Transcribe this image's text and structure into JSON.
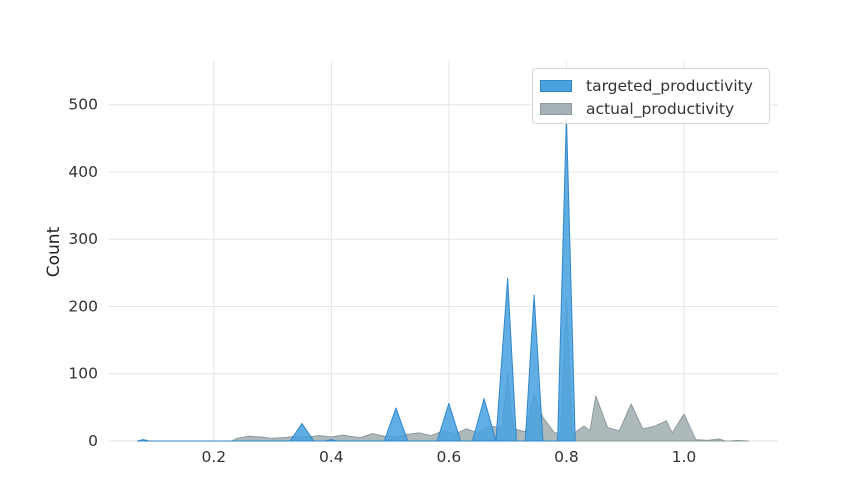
{
  "chart_data": {
    "type": "area",
    "title": "",
    "xlabel": "",
    "ylabel": "Count",
    "xlim": [
      0.02,
      1.16
    ],
    "ylim": [
      0,
      565
    ],
    "xticks": [
      0.2,
      0.4,
      0.6,
      0.8,
      1.0
    ],
    "xtick_labels": [
      "0.2",
      "0.4",
      "0.6",
      "0.8",
      "1.0"
    ],
    "yticks": [
      0,
      100,
      200,
      300,
      400,
      500
    ],
    "ytick_labels": [
      "0",
      "100",
      "200",
      "300",
      "400",
      "500"
    ],
    "grid": true,
    "legend_position": "top-right",
    "series": [
      {
        "name": "targeted_productivity",
        "color": "#4aa3df",
        "edge": "#2f86c9",
        "points": [
          [
            0.07,
            0
          ],
          [
            0.08,
            2
          ],
          [
            0.09,
            0
          ],
          [
            0.33,
            0
          ],
          [
            0.35,
            26
          ],
          [
            0.37,
            0
          ],
          [
            0.39,
            0
          ],
          [
            0.4,
            2
          ],
          [
            0.41,
            0
          ],
          [
            0.49,
            0
          ],
          [
            0.51,
            49
          ],
          [
            0.53,
            0
          ],
          [
            0.58,
            0
          ],
          [
            0.6,
            56
          ],
          [
            0.62,
            0
          ],
          [
            0.64,
            0
          ],
          [
            0.66,
            63
          ],
          [
            0.68,
            0
          ],
          [
            0.68,
            0
          ],
          [
            0.7,
            242
          ],
          [
            0.715,
            0
          ],
          [
            0.73,
            0
          ],
          [
            0.745,
            217
          ],
          [
            0.76,
            0
          ],
          [
            0.785,
            0
          ],
          [
            0.8,
            483
          ],
          [
            0.815,
            0
          ]
        ]
      },
      {
        "name": "actual_productivity",
        "color": "#a5b1b4",
        "edge": "#8c9a9e",
        "points": [
          [
            0.23,
            0
          ],
          [
            0.24,
            4
          ],
          [
            0.26,
            7
          ],
          [
            0.28,
            6
          ],
          [
            0.3,
            4
          ],
          [
            0.32,
            5
          ],
          [
            0.34,
            7
          ],
          [
            0.36,
            6
          ],
          [
            0.38,
            8
          ],
          [
            0.4,
            6
          ],
          [
            0.42,
            9
          ],
          [
            0.43,
            7
          ],
          [
            0.45,
            5
          ],
          [
            0.47,
            11
          ],
          [
            0.49,
            7
          ],
          [
            0.51,
            6
          ],
          [
            0.53,
            10
          ],
          [
            0.55,
            12
          ],
          [
            0.57,
            8
          ],
          [
            0.59,
            15
          ],
          [
            0.61,
            10
          ],
          [
            0.63,
            18
          ],
          [
            0.65,
            12
          ],
          [
            0.67,
            22
          ],
          [
            0.69,
            20
          ],
          [
            0.7,
            100
          ],
          [
            0.71,
            18
          ],
          [
            0.73,
            14
          ],
          [
            0.745,
            70
          ],
          [
            0.76,
            35
          ],
          [
            0.78,
            12
          ],
          [
            0.79,
            12
          ],
          [
            0.8,
            215
          ],
          [
            0.81,
            10
          ],
          [
            0.83,
            22
          ],
          [
            0.84,
            15
          ],
          [
            0.85,
            67
          ],
          [
            0.87,
            20
          ],
          [
            0.89,
            15
          ],
          [
            0.91,
            55
          ],
          [
            0.93,
            18
          ],
          [
            0.95,
            22
          ],
          [
            0.97,
            30
          ],
          [
            0.98,
            12
          ],
          [
            1.0,
            40
          ],
          [
            1.02,
            2
          ],
          [
            1.04,
            1
          ],
          [
            1.06,
            3
          ],
          [
            1.07,
            0
          ],
          [
            1.08,
            0
          ],
          [
            1.09,
            1
          ],
          [
            1.11,
            0
          ]
        ]
      }
    ]
  }
}
